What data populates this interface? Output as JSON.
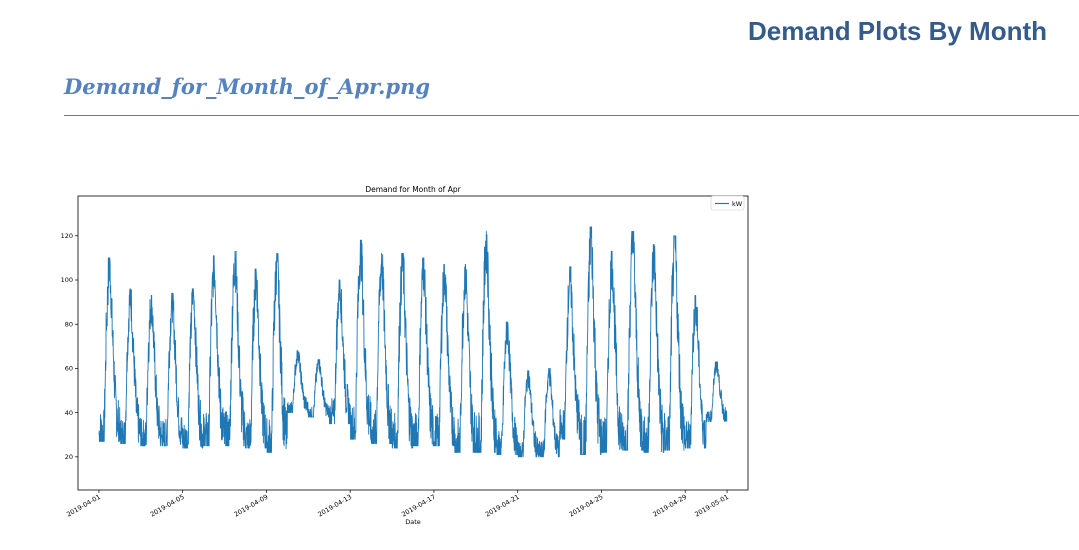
{
  "page": {
    "heading": "Demand Plots By Month",
    "file_title": "Demand_for_Month_of_Apr.png"
  },
  "chart_data": {
    "type": "line",
    "title": "Demand for Month of Apr",
    "xlabel": "Date",
    "ylabel": "",
    "xlim": [
      "2019-03-31",
      "2019-05-02"
    ],
    "ylim": [
      5,
      138
    ],
    "yticks": [
      20,
      40,
      60,
      80,
      100,
      120
    ],
    "xticks": [
      "2019-04-01",
      "2019-04-05",
      "2019-04-09",
      "2019-04-13",
      "2019-04-17",
      "2019-04-21",
      "2019-04-25",
      "2019-04-29",
      "2019-05-01"
    ],
    "legend": {
      "position": "top-right",
      "entries": [
        "kW"
      ]
    },
    "line_color": "#1f77b4",
    "grid": false,
    "series": [
      {
        "name": "kW",
        "x": [
          "2019-04-01",
          "2019-04-02",
          "2019-04-03",
          "2019-04-04",
          "2019-04-05",
          "2019-04-06",
          "2019-04-07",
          "2019-04-08",
          "2019-04-09",
          "2019-04-10",
          "2019-04-11",
          "2019-04-12",
          "2019-04-13",
          "2019-04-14",
          "2019-04-15",
          "2019-04-16",
          "2019-04-17",
          "2019-04-18",
          "2019-04-19",
          "2019-04-20",
          "2019-04-21",
          "2019-04-22",
          "2019-04-23",
          "2019-04-24",
          "2019-04-25",
          "2019-04-26",
          "2019-04-27",
          "2019-04-28",
          "2019-04-29",
          "2019-04-30"
        ],
        "daily_min": [
          27,
          26,
          25,
          25,
          24,
          25,
          25,
          24,
          22,
          40,
          38,
          35,
          28,
          26,
          24,
          25,
          25,
          22,
          22,
          21,
          20,
          20,
          28,
          21,
          22,
          23,
          22,
          23,
          24,
          36
        ],
        "daily_max": [
          110,
          96,
          93,
          94,
          96,
          111,
          113,
          105,
          112,
          68,
          64,
          100,
          118,
          112,
          112,
          110,
          107,
          107,
          122,
          81,
          59,
          60,
          106,
          124,
          113,
          122,
          116,
          120,
          93,
          63
        ]
      }
    ]
  }
}
